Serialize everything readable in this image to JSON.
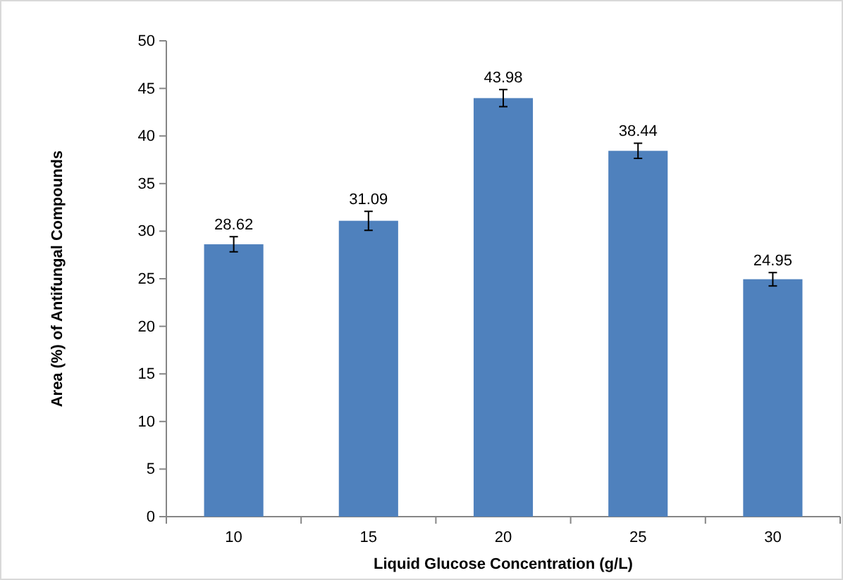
{
  "chart_data": {
    "type": "bar",
    "xlabel": "Liquid Glucose Concentration (g/L)",
    "ylabel": "Area (%) of Antifungal Compounds",
    "categories": [
      "10",
      "15",
      "20",
      "25",
      "30"
    ],
    "values": [
      28.62,
      31.09,
      43.98,
      38.44,
      24.95
    ],
    "errors": [
      0.8,
      1.0,
      0.9,
      0.8,
      0.7
    ],
    "color": "#4f81bd",
    "data_labels": true,
    "ylim": [
      0,
      50
    ],
    "yticks": [
      0,
      5,
      10,
      15,
      20,
      25,
      30,
      35,
      40,
      45,
      50
    ],
    "grid": false
  }
}
